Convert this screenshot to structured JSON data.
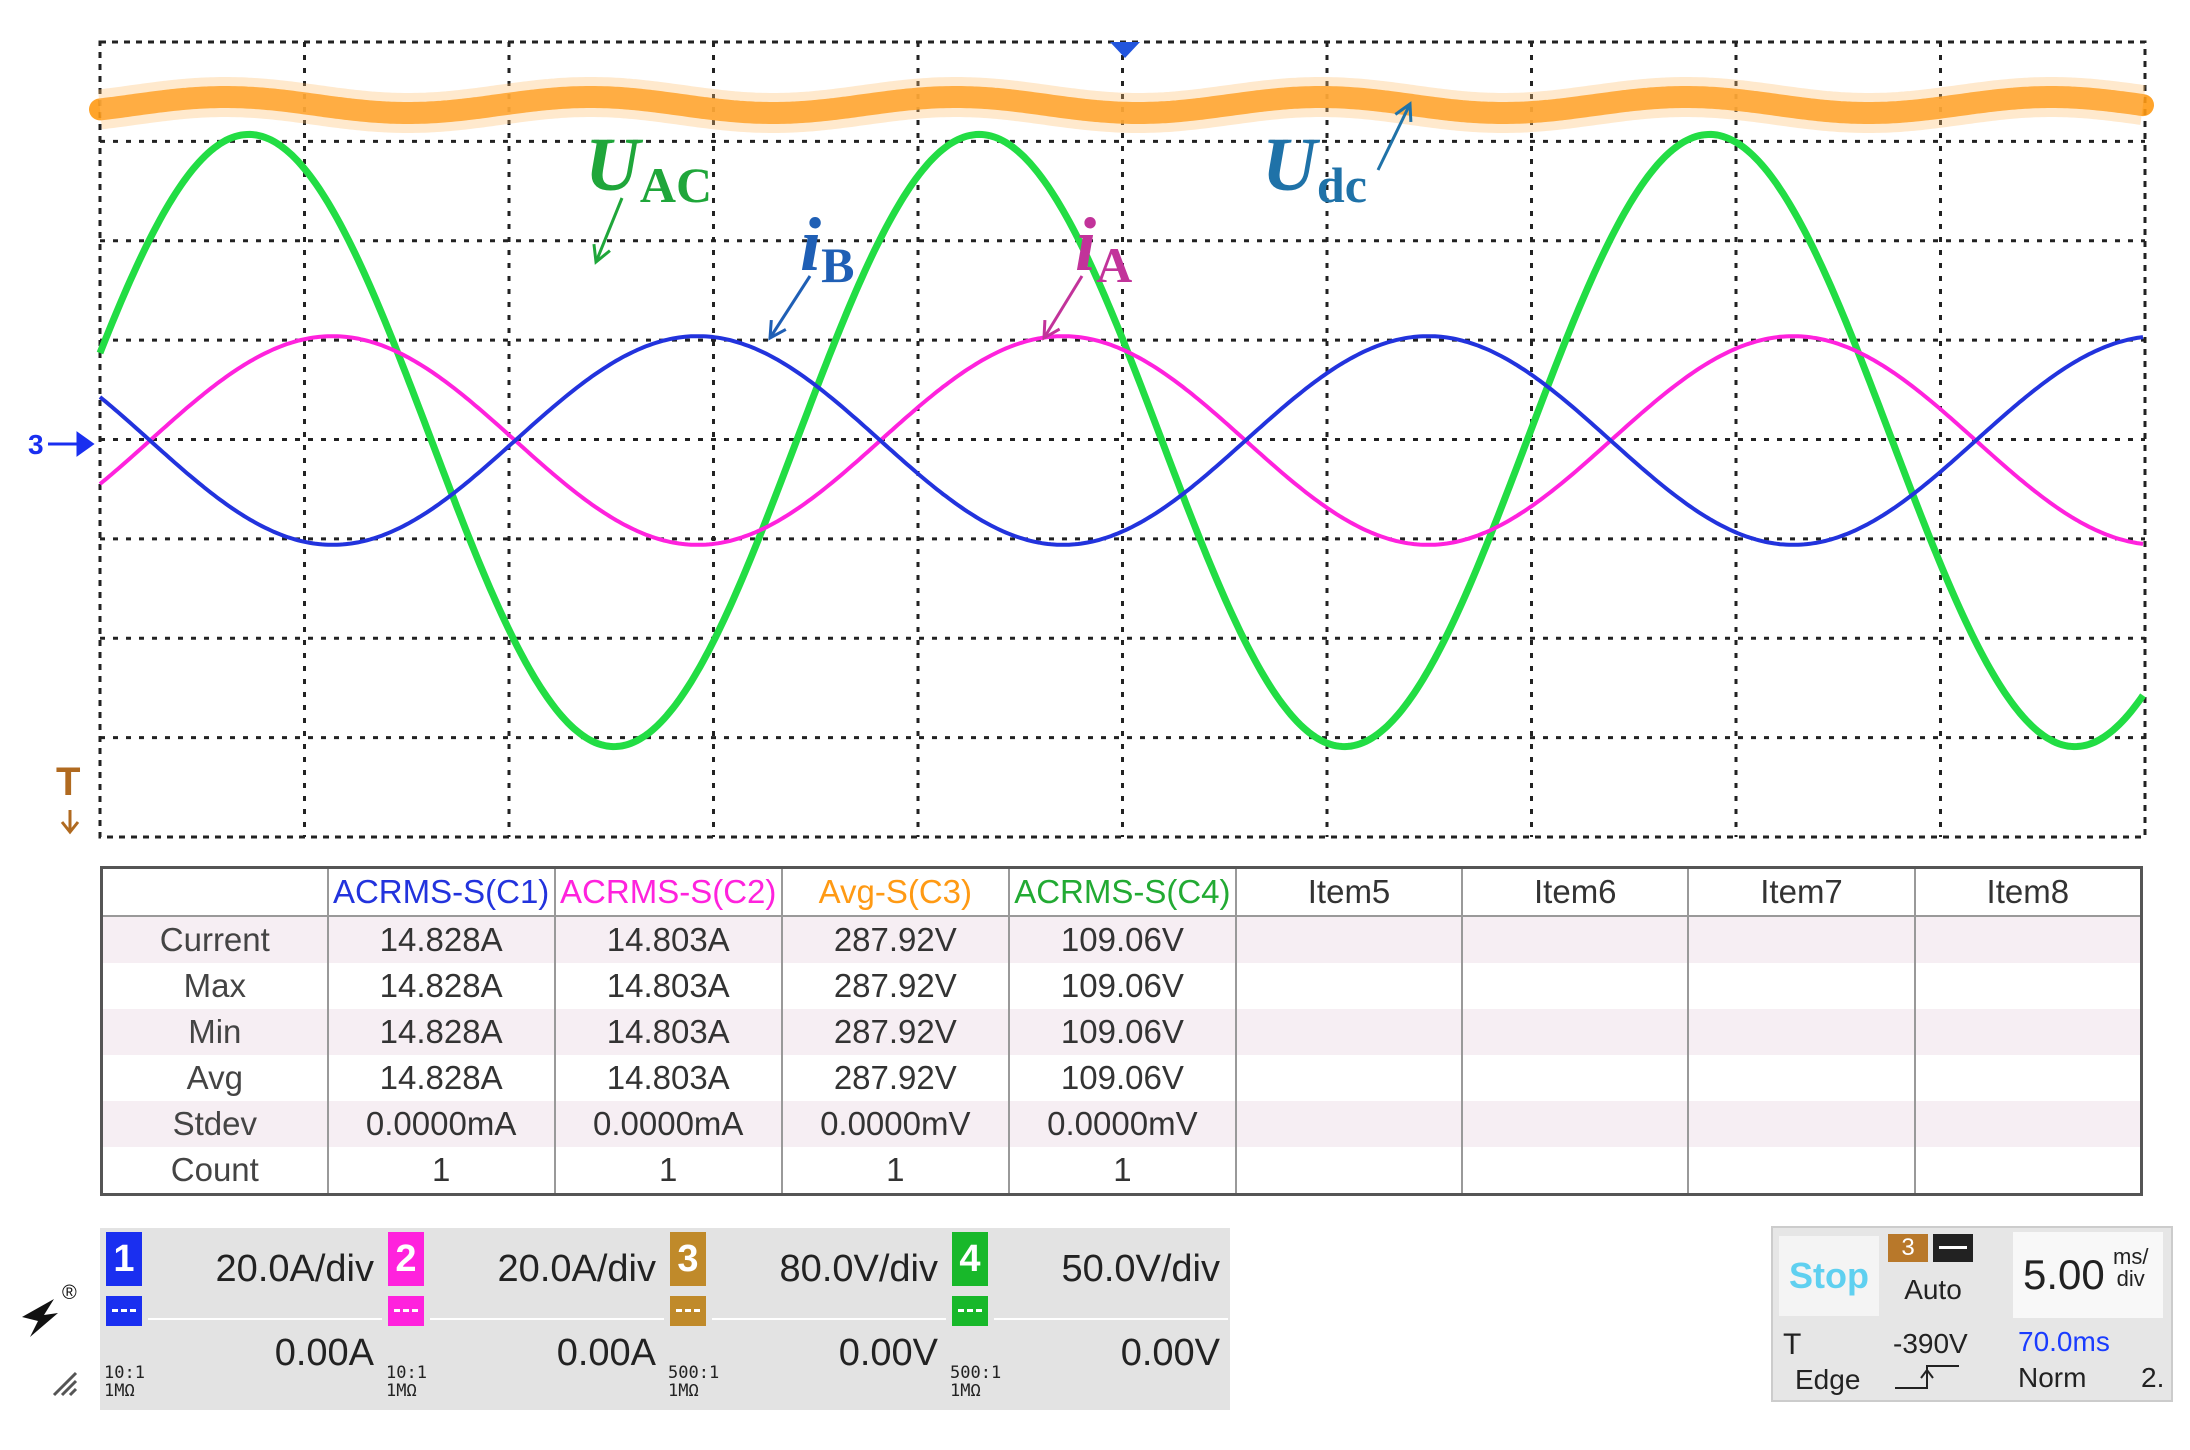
{
  "annotations": [
    {
      "id": "uac",
      "main": "U",
      "sub": "AC",
      "color": "#1fa63a"
    },
    {
      "id": "ib",
      "main": "i",
      "sub": "B",
      "color": "#1f5fb5"
    },
    {
      "id": "ia",
      "main": "i",
      "sub": "A",
      "color": "#c2339a"
    },
    {
      "id": "udc",
      "main": "U",
      "sub": "dc",
      "color": "#1f72a8"
    }
  ],
  "markers": {
    "channel_marker": "3",
    "trigger_marker": "T"
  },
  "chart_data": {
    "type": "line",
    "x_unit": "ms",
    "x_range": [
      -35,
      35
    ],
    "divisions": {
      "x": 10,
      "y": 8
    },
    "grid": true,
    "series": [
      {
        "channel": 1,
        "color": "#2233dd",
        "shape": "sine",
        "amplitude_A": 21.0,
        "freq_Hz": 40,
        "rms": "14.828A"
      },
      {
        "channel": 2,
        "color": "#ff22dd",
        "shape": "sine",
        "amplitude_A": 21.0,
        "freq_Hz": 40,
        "rms": "14.803A"
      },
      {
        "channel": 3,
        "color": "#ff9a14",
        "shape": "dc-band",
        "avg": "287.92V"
      },
      {
        "channel": 4,
        "color": "#22dd44",
        "shape": "sine",
        "amplitude_V": 154,
        "freq_Hz": 40,
        "rms": "109.06V"
      }
    ]
  },
  "measurements": {
    "headers": [
      "",
      "ACRMS-S(C1)",
      "ACRMS-S(C2)",
      "Avg-S(C3)",
      "ACRMS-S(C4)",
      "Item5",
      "Item6",
      "Item7",
      "Item8"
    ],
    "header_colors": [
      "#333333",
      "#2233dd",
      "#ff22dd",
      "#ff9a14",
      "#22aa33",
      "#333333",
      "#333333",
      "#333333",
      "#333333"
    ],
    "rows": [
      {
        "label": "Current",
        "values": [
          "14.828A",
          "14.803A",
          "287.92V",
          "109.06V",
          "",
          "",
          "",
          ""
        ]
      },
      {
        "label": "Max",
        "values": [
          "14.828A",
          "14.803A",
          "287.92V",
          "109.06V",
          "",
          "",
          "",
          ""
        ]
      },
      {
        "label": "Min",
        "values": [
          "14.828A",
          "14.803A",
          "287.92V",
          "109.06V",
          "",
          "",
          "",
          ""
        ]
      },
      {
        "label": "Avg",
        "values": [
          "14.828A",
          "14.803A",
          "287.92V",
          "109.06V",
          "",
          "",
          "",
          ""
        ]
      },
      {
        "label": "Stdev",
        "values": [
          "0.0000mA",
          "0.0000mA",
          "0.0000mV",
          "0.0000mV",
          "",
          "",
          "",
          ""
        ]
      },
      {
        "label": "Count",
        "values": [
          "1",
          "1",
          "1",
          "1",
          "",
          "",
          "",
          ""
        ]
      }
    ]
  },
  "channels": [
    {
      "num": "1",
      "color": "#1a2ff0",
      "scale": "20.0A/div",
      "offset": "0.00A",
      "probe": "10:1 1MΩ"
    },
    {
      "num": "2",
      "color": "#ff22dd",
      "scale": "20.0A/div",
      "offset": "0.00A",
      "probe": "10:1 1MΩ"
    },
    {
      "num": "3",
      "color": "#c08a2a",
      "scale": "80.0V/div",
      "offset": "0.00V",
      "probe": "500:1 1MΩ"
    },
    {
      "num": "4",
      "color": "#18b82a",
      "scale": "50.0V/div",
      "offset": "0.00V",
      "probe": "500:1 1MΩ"
    }
  ],
  "trigger": {
    "status": "Stop",
    "source": "3",
    "mode": "Auto",
    "label": "T",
    "level": "-390V",
    "type": "Edge",
    "timebase_value": "5.00",
    "timebase_unit_top": "ms/",
    "timebase_unit_bottom": "div",
    "delay": "70.0ms",
    "acq": "Norm",
    "acq_extra": "2."
  },
  "logo_mark": "®"
}
